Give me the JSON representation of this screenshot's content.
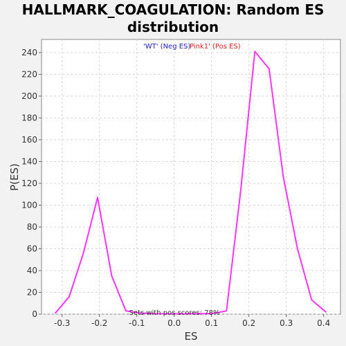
{
  "chart_data": {
    "type": "line",
    "title": "HALLMARK_COAGULATION: Random ES distribution",
    "title_lines": [
      "HALLMARK_COAGULATION: Random ES",
      "distribution"
    ],
    "xlabel": "ES",
    "ylabel": "P(ES)",
    "xlim": [
      -0.355,
      0.445
    ],
    "ylim": [
      0,
      252
    ],
    "xticks": [
      -0.3,
      -0.2,
      -0.1,
      0.0,
      0.1,
      0.2,
      0.3,
      0.4
    ],
    "xtick_labels": [
      "-0.3",
      "-0.2",
      "-0.1",
      "0.0",
      "0.1",
      "0.2",
      "0.3",
      "0.4"
    ],
    "yticks": [
      0,
      20,
      40,
      60,
      80,
      100,
      120,
      140,
      160,
      180,
      200,
      220,
      240
    ],
    "ytick_labels": [
      "0",
      "20",
      "40",
      "60",
      "80",
      "100",
      "120",
      "140",
      "160",
      "180",
      "200",
      "220",
      "240"
    ],
    "grid": true,
    "legend_position": "top-center",
    "legend": [
      {
        "label": "'WT' (Neg ES)",
        "color": "#2020c8"
      },
      {
        "label": "Pink1' (Pos ES)",
        "color": "#e02020"
      }
    ],
    "annotation": "Sets with pos scores: 78%",
    "series": [
      {
        "color": "#ff33ff",
        "x": [
          -0.318,
          -0.281,
          -0.243,
          -0.205,
          -0.167,
          -0.129,
          -0.091,
          -0.05,
          0.0,
          0.05,
          0.1,
          0.14,
          0.178,
          0.216,
          0.254,
          0.292,
          0.33,
          0.368,
          0.406
        ],
        "y": [
          1,
          16,
          56,
          107,
          35,
          3,
          1,
          0.5,
          0.3,
          0.5,
          0.5,
          3,
          113,
          241,
          225,
          126,
          60,
          13,
          2
        ]
      }
    ]
  }
}
